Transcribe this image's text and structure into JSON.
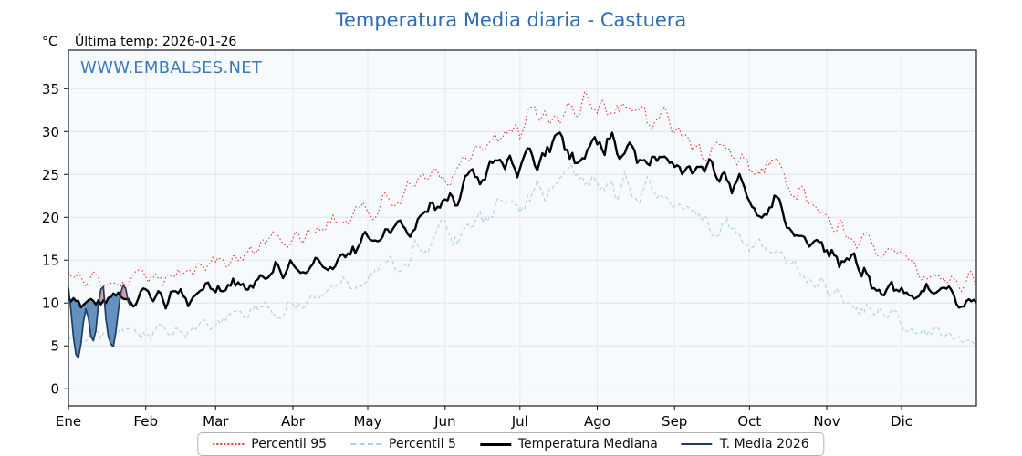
{
  "title": "Temperatura Media diaria - Castuera",
  "header": {
    "unit_label": "°C",
    "last_temp_label": "Última temp: 2026-01-26"
  },
  "watermark": "WWW.EMBALSES.NET",
  "accent_color": "#2e6cb5",
  "chart_data": {
    "type": "line",
    "title": "Temperatura Media diaria - Castuera",
    "xlabel": "",
    "ylabel": "°C",
    "ylim": [
      -2,
      39.5
    ],
    "y_ticks": [
      0,
      5,
      10,
      15,
      20,
      25,
      30,
      35
    ],
    "x_months": [
      "Ene",
      "Feb",
      "Mar",
      "Abr",
      "May",
      "Jun",
      "Jul",
      "Ago",
      "Sep",
      "Oct",
      "Nov",
      "Dic"
    ],
    "month_start_days": [
      1,
      32,
      60,
      91,
      121,
      152,
      182,
      213,
      244,
      274,
      305,
      335
    ],
    "grid": true,
    "legend_position": "bottom",
    "last_date": "2026-01-26",
    "series": [
      {
        "name": "Percentil 95",
        "style": "dotted",
        "color": "#dd3333",
        "width": 1.1,
        "monthly_values": [
          12.5,
          13.8,
          16.0,
          19.0,
          22.5,
          28.5,
          32.5,
          33.0,
          28.5,
          24.0,
          17.5,
          13.2
        ],
        "noise_amp": 1.5,
        "seed": 101
      },
      {
        "name": "Percentil 5",
        "style": "dashed",
        "color": "#a8d1e7",
        "width": 1.1,
        "monthly_values": [
          6.3,
          6.3,
          8.5,
          11.3,
          14.5,
          19.8,
          23.5,
          24.0,
          20.5,
          15.0,
          9.5,
          6.2
        ],
        "noise_amp": 1.6,
        "seed": 202
      },
      {
        "name": "Temperatura Mediana",
        "style": "solid",
        "color": "#000000",
        "width": 2.4,
        "monthly_values": [
          10.3,
          10.8,
          12.3,
          14.8,
          18.5,
          24.3,
          27.8,
          28.6,
          24.4,
          20.3,
          13.8,
          10.2
        ],
        "noise_amp": 1.5,
        "seed": 303
      },
      {
        "name": "T. Media 2026",
        "style": "solid",
        "color": "#1f3d63",
        "width": 1.7,
        "daily_values": [
          11.8,
          9.2,
          6.0,
          4.0,
          3.6,
          5.2,
          7.8,
          9.3,
          8.2,
          6.1,
          5.6,
          6.8,
          9.8,
          11.6,
          11.9,
          8.2,
          6.1,
          5.2,
          4.9,
          6.6,
          9.1,
          11.2,
          12.1,
          11.6,
          10.1,
          9.6
        ],
        "fill_below_color": "#4a7fb5",
        "fill_above_color": "#c0504d"
      }
    ]
  }
}
